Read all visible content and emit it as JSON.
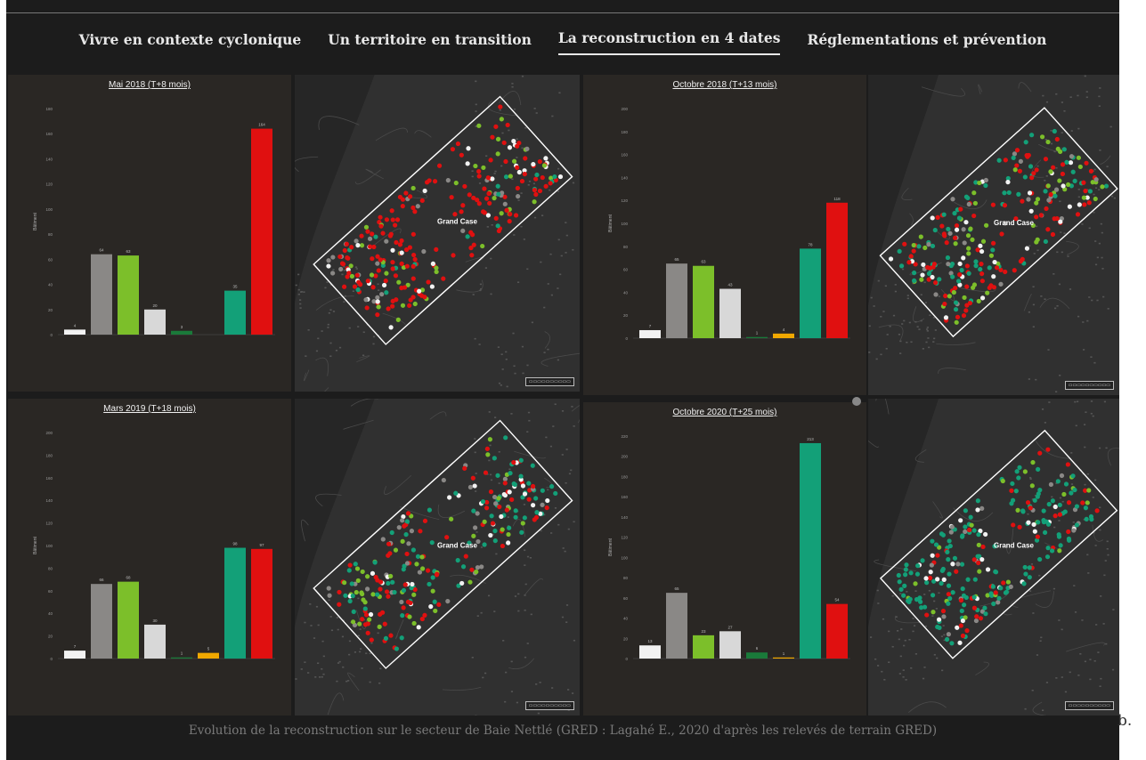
{
  "nav": {
    "items": [
      {
        "label": "Vivre en contexte cyclonique",
        "active": false
      },
      {
        "label": "Un territoire en transition",
        "active": false
      },
      {
        "label": "La reconstruction en 4 dates",
        "active": true
      },
      {
        "label": "Réglementations et prévention",
        "active": false
      }
    ]
  },
  "colors": {
    "white": "#f2f2f2",
    "grey": "#8a8886",
    "lightgreen": "#7cbf2a",
    "lightgrey": "#d8d8d8",
    "green": "#1a7a3a",
    "orange": "#f0a800",
    "teal": "#13a078",
    "red": "#e01010"
  },
  "chart_data": [
    {
      "type": "bar",
      "title": "Mai 2018 (T+8 mois)",
      "ylabel": "Bâtiment",
      "ylim": [
        0,
        180
      ],
      "yticks": [
        0,
        20,
        40,
        60,
        80,
        100,
        120,
        140,
        160,
        180
      ],
      "values": [
        4,
        64,
        63,
        20,
        3,
        0,
        35,
        164
      ],
      "value_labels": [
        "4",
        "64",
        "63",
        "20",
        "3",
        "",
        "35",
        "164"
      ],
      "colors": [
        "#f2f2f2",
        "#8a8886",
        "#7cbf2a",
        "#d8d8d8",
        "#1a7a3a",
        "#f0a800",
        "#13a078",
        "#e01010"
      ]
    },
    {
      "type": "bar",
      "title": "Octobre 2018 (T+13 mois)",
      "ylabel": "Bâtiment",
      "ylim": [
        0,
        200
      ],
      "yticks": [
        0,
        20,
        40,
        60,
        80,
        100,
        120,
        140,
        160,
        180,
        200
      ],
      "values": [
        7,
        65,
        63,
        43,
        1,
        4,
        78,
        118
      ],
      "value_labels": [
        "7",
        "65",
        "63",
        "43",
        "1",
        "4",
        "78",
        "118"
      ],
      "colors": [
        "#f2f2f2",
        "#8a8886",
        "#7cbf2a",
        "#d8d8d8",
        "#1a7a3a",
        "#f0a800",
        "#13a078",
        "#e01010"
      ]
    },
    {
      "type": "bar",
      "title": "Mars 2019 (T+18 mois)",
      "ylabel": "Bâtiment",
      "ylim": [
        0,
        200
      ],
      "yticks": [
        0,
        20,
        40,
        60,
        80,
        100,
        120,
        140,
        160,
        180,
        200
      ],
      "values": [
        7,
        66,
        68,
        30,
        1,
        5,
        98,
        97
      ],
      "value_labels": [
        "7",
        "66",
        "68",
        "30",
        "1",
        "5",
        "98",
        "97"
      ],
      "colors": [
        "#f2f2f2",
        "#8a8886",
        "#7cbf2a",
        "#d8d8d8",
        "#1a7a3a",
        "#f0a800",
        "#13a078",
        "#e01010"
      ]
    },
    {
      "type": "bar",
      "title": "Octobre 2020 (T+25 mois)",
      "ylabel": "Bâtiment",
      "ylim": [
        0,
        220
      ],
      "yticks": [
        0,
        20,
        40,
        60,
        80,
        100,
        120,
        140,
        160,
        180,
        200,
        220
      ],
      "values": [
        13,
        65,
        23,
        27,
        6,
        1,
        213,
        54
      ],
      "value_labels": [
        "13",
        "65",
        "23",
        "27",
        "6",
        "1",
        "213",
        "54"
      ],
      "colors": [
        "#f2f2f2",
        "#8a8886",
        "#7cbf2a",
        "#d8d8d8",
        "#1a7a3a",
        "#f0a800",
        "#13a078",
        "#e01010"
      ]
    }
  ],
  "maps": {
    "label": "Grand Case"
  },
  "caption": "Evolution de la reconstruction sur le secteur de Baie Nettlé (GRED : Lagahé E., 2020 d'après les relevés de terrain GRED)",
  "figure_tag": "b."
}
